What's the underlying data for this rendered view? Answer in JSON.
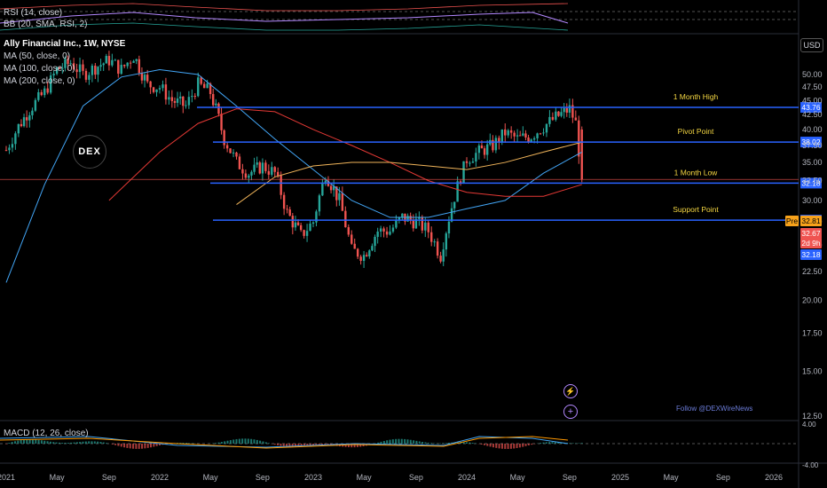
{
  "colors": {
    "background": "#000000",
    "up": "#26a69a",
    "down": "#ef5350",
    "level_line": "#2962ff",
    "level_label": "#f5d742",
    "ma50": "#42a5f5",
    "ma100": "#e53935",
    "ma200": "#f0b45a",
    "macd_line": "#42a5f5",
    "signal_line": "#ff9800"
  },
  "legend": {
    "rsi": "RSI (14, close)",
    "bb": "BB (20, SMA, RSI, 2)",
    "title": "Ally Financial Inc., 1W, NYSE",
    "ma50": "MA (50, close, 0)",
    "ma100": "MA (100, close, 0)",
    "ma200": "MA (200, close, 0)",
    "macd": "MACD (12, 26, close)"
  },
  "currency_button": "USD",
  "watermark": "DEX",
  "follow_text": "Follow @DEXWireNews",
  "price_badges": {
    "pre_tag": "Pre",
    "pre_value": "32.81",
    "last_value": "32.67",
    "countdown": "2d 9h",
    "low_value": "32.18"
  },
  "chart_data": {
    "type": "candlestick",
    "title": "Ally Financial Inc., 1W, NYSE",
    "y_ticks": [
      12.5,
      15.0,
      17.5,
      20.0,
      22.5,
      25.0,
      27.5,
      30.0,
      32.5,
      35.0,
      37.5,
      40.0,
      42.5,
      45.0,
      47.5,
      50.0
    ],
    "y_tick_labels": [
      "12.50",
      "15.00",
      "17.50",
      "20.00",
      "22.50",
      "25.00",
      "27.50",
      "30.00",
      "32.50",
      "35.00",
      "37.50",
      "40.00",
      "42.50",
      "45.00",
      "47.50",
      "50.00"
    ],
    "x_tick_labels": [
      "2021",
      "May",
      "Sep",
      "2022",
      "May",
      "Sep",
      "2023",
      "May",
      "Sep",
      "2024",
      "May",
      "Sep",
      "2025",
      "May",
      "Sep",
      "2026"
    ],
    "levels": [
      {
        "name": "1 Month High",
        "value": 43.76,
        "label": "43.76"
      },
      {
        "name": "Pivot Point",
        "value": 38.02,
        "label": "38.02"
      },
      {
        "name": "1 Month Low",
        "value": 32.18,
        "label": "32.18"
      },
      {
        "name": "Support Point",
        "value": 27.69,
        "label": "27.69"
      }
    ],
    "closes": [
      [
        2021.0,
        36.8
      ],
      [
        2021.08,
        40.5
      ],
      [
        2021.17,
        44.0
      ],
      [
        2021.25,
        46.5
      ],
      [
        2021.33,
        51.0
      ],
      [
        2021.42,
        52.5
      ],
      [
        2021.5,
        50.0
      ],
      [
        2021.58,
        51.5
      ],
      [
        2021.67,
        53.0
      ],
      [
        2021.75,
        51.0
      ],
      [
        2021.83,
        54.0
      ],
      [
        2021.92,
        48.0
      ],
      [
        2022.0,
        47.5
      ],
      [
        2022.08,
        45.0
      ],
      [
        2022.17,
        44.0
      ],
      [
        2022.25,
        48.0
      ],
      [
        2022.33,
        46.5
      ],
      [
        2022.42,
        38.5
      ],
      [
        2022.5,
        35.0
      ],
      [
        2022.58,
        33.5
      ],
      [
        2022.67,
        34.5
      ],
      [
        2022.75,
        33.5
      ],
      [
        2022.83,
        28.5
      ],
      [
        2022.92,
        26.0
      ],
      [
        2023.0,
        27.5
      ],
      [
        2023.08,
        33.5
      ],
      [
        2023.17,
        30.0
      ],
      [
        2023.25,
        24.5
      ],
      [
        2023.33,
        24.0
      ],
      [
        2023.42,
        26.5
      ],
      [
        2023.5,
        26.5
      ],
      [
        2023.58,
        28.0
      ],
      [
        2023.67,
        27.5
      ],
      [
        2023.75,
        26.5
      ],
      [
        2023.83,
        24.0
      ],
      [
        2023.92,
        30.5
      ],
      [
        2024.0,
        35.5
      ],
      [
        2024.08,
        36.5
      ],
      [
        2024.17,
        37.5
      ],
      [
        2024.25,
        39.5
      ],
      [
        2024.33,
        38.5
      ],
      [
        2024.42,
        39.0
      ],
      [
        2024.5,
        40.5
      ],
      [
        2024.58,
        42.0
      ],
      [
        2024.67,
        43.5
      ],
      [
        2024.71,
        41.0
      ],
      [
        2024.75,
        32.67
      ]
    ],
    "ma50": [
      [
        2021.0,
        21.5
      ],
      [
        2021.25,
        32.0
      ],
      [
        2021.5,
        44.0
      ],
      [
        2021.75,
        49.5
      ],
      [
        2022.0,
        51.0
      ],
      [
        2022.25,
        50.0
      ],
      [
        2022.5,
        44.0
      ],
      [
        2022.75,
        38.5
      ],
      [
        2023.0,
        34.0
      ],
      [
        2023.25,
        30.0
      ],
      [
        2023.5,
        28.0
      ],
      [
        2023.75,
        28.0
      ],
      [
        2024.0,
        29.0
      ],
      [
        2024.25,
        30.0
      ],
      [
        2024.5,
        33.5
      ],
      [
        2024.75,
        36.5
      ]
    ],
    "ma100": [
      [
        2021.67,
        30.0
      ],
      [
        2022.0,
        36.5
      ],
      [
        2022.25,
        41.0
      ],
      [
        2022.5,
        43.5
      ],
      [
        2022.75,
        43.0
      ],
      [
        2023.0,
        40.0
      ],
      [
        2023.25,
        37.5
      ],
      [
        2023.5,
        35.0
      ],
      [
        2023.75,
        32.5
      ],
      [
        2024.0,
        31.0
      ],
      [
        2024.25,
        30.5
      ],
      [
        2024.5,
        30.5
      ],
      [
        2024.75,
        32.0
      ]
    ],
    "ma200": [
      [
        2022.5,
        29.5
      ],
      [
        2022.75,
        33.0
      ],
      [
        2023.0,
        34.5
      ],
      [
        2023.25,
        35.0
      ],
      [
        2023.5,
        35.0
      ],
      [
        2023.75,
        34.5
      ],
      [
        2024.0,
        34.0
      ],
      [
        2024.25,
        35.0
      ],
      [
        2024.5,
        36.5
      ],
      [
        2024.75,
        38.0
      ]
    ],
    "macd_ticks": [
      "4.00",
      "-4.00"
    ]
  }
}
